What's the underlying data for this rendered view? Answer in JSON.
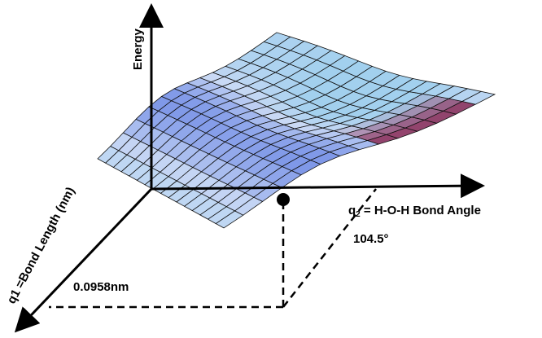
{
  "axes": {
    "energy": "Energy",
    "q1": "q1 =Bond Length (nm)",
    "q2_prefix": "q",
    "q2_sub": "2",
    "q2_rest": " = H-O-H Bond Angle"
  },
  "minimum": {
    "bond_length": "0.0958nm",
    "bond_angle": "104.5°"
  },
  "colors": {
    "surface_high": "#7f98e8",
    "surface_mid": "#c9d9f5",
    "surface_low": "#a2d0ee",
    "surface_well": "#8a2a55",
    "mesh": "#111111",
    "axes": "#000000"
  }
}
